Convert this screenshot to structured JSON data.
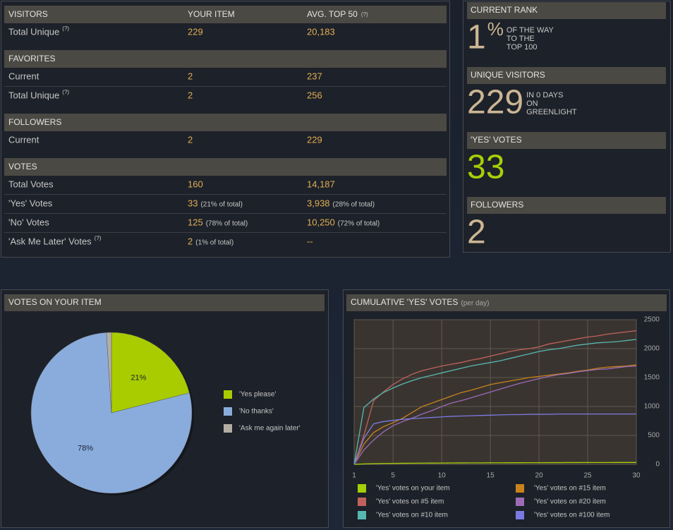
{
  "table": {
    "sections": [
      {
        "title": "VISITORS",
        "columns": [
          "YOUR ITEM",
          "AVG. TOP 50"
        ],
        "columns_note": "(?)",
        "rows": [
          {
            "label": "Total Unique",
            "help": "(?)",
            "item": "229",
            "avg": "20,183"
          }
        ]
      },
      {
        "title": "FAVORITES",
        "rows": [
          {
            "label": "Current",
            "item": "2",
            "avg": "237"
          },
          {
            "label": "Total Unique",
            "help": "(?)",
            "item": "2",
            "avg": "256"
          }
        ]
      },
      {
        "title": "FOLLOWERS",
        "rows": [
          {
            "label": "Current",
            "item": "2",
            "avg": "229"
          }
        ]
      },
      {
        "title": "VOTES",
        "rows": [
          {
            "label": "Total Votes",
            "item": "160",
            "avg": "14,187"
          },
          {
            "label": "'Yes' Votes",
            "item": "33",
            "item_note": "(21% of total)",
            "avg": "3,938",
            "avg_note": "(28% of total)"
          },
          {
            "label": "'No' Votes",
            "item": "125",
            "item_note": "(78% of total)",
            "avg": "10,250",
            "avg_note": "(72% of total)"
          },
          {
            "label": "'Ask Me Later' Votes",
            "help": "(?)",
            "item": "2",
            "item_note": "(1% of total)",
            "avg": "--"
          }
        ]
      }
    ]
  },
  "side": [
    {
      "title": "CURRENT RANK",
      "value": "1",
      "unit": "%",
      "caption": [
        "OF THE WAY",
        "TO THE",
        "TOP 100"
      ]
    },
    {
      "title": "UNIQUE VISITORS",
      "value": "229",
      "caption": [
        "IN 0 DAYS",
        "ON",
        "GREENLIGHT"
      ]
    },
    {
      "title": "'YES' VOTES",
      "value": "33"
    },
    {
      "title": "FOLLOWERS",
      "value": "2"
    }
  ],
  "chart_data": [
    {
      "type": "pie",
      "title": "VOTES ON YOUR ITEM",
      "categories": [
        "'Yes please'",
        "'No thanks'",
        "'Ask me again later'"
      ],
      "values": [
        21,
        78,
        1
      ],
      "value_labels": [
        "21%",
        "78%",
        null
      ],
      "colors": [
        "#a8cc00",
        "#8aacdc",
        "#b3ada3"
      ]
    },
    {
      "type": "line",
      "title": "CUMULATIVE 'YES' VOTES",
      "subtitle": "(per day)",
      "x": [
        1,
        2,
        3,
        4,
        5,
        6,
        7,
        8,
        9,
        10,
        11,
        12,
        13,
        14,
        15,
        16,
        17,
        18,
        19,
        20,
        21,
        22,
        23,
        24,
        25,
        26,
        27,
        28,
        29,
        30
      ],
      "xlim": [
        1,
        30
      ],
      "xticks": [
        1,
        5,
        10,
        15,
        20,
        25,
        30
      ],
      "ylim": [
        0,
        2500
      ],
      "yticks": [
        0,
        500,
        1000,
        1500,
        2000,
        2500
      ],
      "grid": true,
      "series": [
        {
          "name": "'Yes' votes on your item",
          "color": "#a4d007",
          "values": [
            0,
            8,
            12,
            15,
            17,
            19,
            20,
            21,
            22,
            23,
            24,
            25,
            26,
            26,
            27,
            27,
            28,
            28,
            29,
            29,
            30,
            30,
            31,
            31,
            32,
            32,
            32,
            33,
            33,
            33
          ]
        },
        {
          "name": "'Yes' votes on #5 item",
          "color": "#c0625c",
          "values": [
            0,
            500,
            1100,
            1250,
            1380,
            1480,
            1560,
            1620,
            1660,
            1700,
            1730,
            1760,
            1800,
            1830,
            1870,
            1910,
            1950,
            1980,
            2000,
            2030,
            2080,
            2110,
            2140,
            2170,
            2200,
            2220,
            2250,
            2270,
            2290,
            2310
          ]
        },
        {
          "name": "'Yes' votes on #10 item",
          "color": "#56b8b0",
          "values": [
            0,
            980,
            1130,
            1240,
            1320,
            1390,
            1450,
            1500,
            1540,
            1580,
            1620,
            1660,
            1700,
            1730,
            1760,
            1790,
            1830,
            1870,
            1910,
            1950,
            1980,
            2000,
            2030,
            2060,
            2080,
            2100,
            2110,
            2120,
            2140,
            2160
          ]
        },
        {
          "name": "'Yes' votes on #15 item",
          "color": "#c8831c",
          "values": [
            0,
            350,
            550,
            650,
            720,
            800,
            900,
            1000,
            1060,
            1120,
            1180,
            1240,
            1280,
            1330,
            1380,
            1410,
            1440,
            1470,
            1500,
            1520,
            1540,
            1560,
            1580,
            1610,
            1630,
            1660,
            1680,
            1690,
            1700,
            1720
          ]
        },
        {
          "name": "'Yes' votes on #20 item",
          "color": "#9b6bb5",
          "values": [
            0,
            250,
            420,
            560,
            670,
            740,
            800,
            870,
            930,
            1000,
            1060,
            1100,
            1150,
            1200,
            1250,
            1300,
            1350,
            1400,
            1440,
            1480,
            1520,
            1550,
            1570,
            1600,
            1620,
            1640,
            1650,
            1670,
            1690,
            1700
          ]
        },
        {
          "name": "'Yes' votes on #100 item",
          "color": "#7a7be0",
          "values": [
            0,
            450,
            700,
            740,
            760,
            780,
            790,
            800,
            810,
            820,
            830,
            835,
            840,
            845,
            850,
            855,
            860,
            860,
            865,
            865,
            865,
            870,
            870,
            870,
            870,
            870,
            870,
            870,
            870,
            870
          ]
        }
      ]
    }
  ]
}
